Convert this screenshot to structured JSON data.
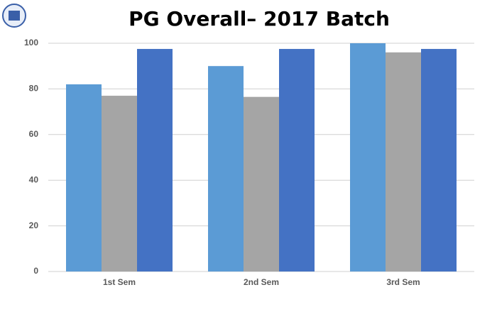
{
  "chart_data": {
    "type": "bar",
    "title": "PG Overall– 2017 Batch",
    "categories": [
      "1st Sem",
      "2nd Sem",
      "3rd Sem"
    ],
    "series": [
      {
        "color": "#5b9bd5",
        "values": [
          82,
          90,
          100
        ]
      },
      {
        "color": "#a5a5a5",
        "values": [
          77,
          76.5,
          96
        ]
      },
      {
        "color": "#4472c4",
        "values": [
          97.5,
          97.5,
          97.5
        ]
      }
    ],
    "ylim": [
      0,
      100
    ],
    "yticks": [
      0,
      20,
      40,
      60,
      80,
      100
    ],
    "grid": true
  }
}
